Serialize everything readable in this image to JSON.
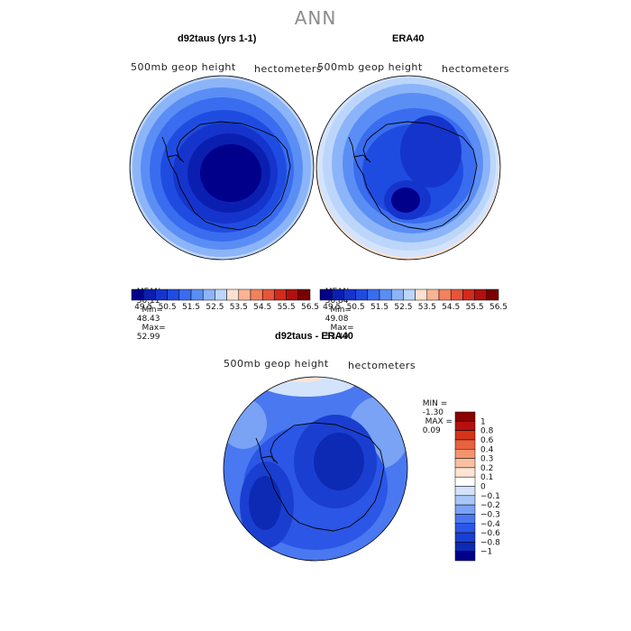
{
  "title": "ANN",
  "colors": {
    "seq": [
      "#00008b",
      "#0a1fb0",
      "#1534cc",
      "#1f4ce0",
      "#3a6cef",
      "#5a8ef5",
      "#8cb4f8",
      "#bcd6fb",
      "#fde0cf",
      "#f8b494",
      "#f2825e",
      "#e6553a",
      "#d22a1c",
      "#b01010",
      "#7a0000"
    ],
    "diff": [
      "#00008b",
      "#0d2ab5",
      "#1a3fd0",
      "#2b56e6",
      "#4a78f0",
      "#7aa2f5",
      "#a9c6f9",
      "#d3e3fc",
      "#ffffff",
      "#fde4d4",
      "#f9bfa3",
      "#f3936e",
      "#e9613f",
      "#d63418",
      "#b41010",
      "#8b0000"
    ]
  },
  "chart_data": [
    {
      "type": "heatmap",
      "projection": "south-polar-stereographic",
      "title": "d92taus (yrs 1-1)",
      "variable": "500mb geop height",
      "units": "hectometers",
      "stats": {
        "MEAN": "50.11",
        "Min": "48.43",
        "Max": "52.99"
      },
      "colorbar_ticks": [
        "49.5",
        "50.5",
        "51.5",
        "52.5",
        "53.5",
        "54.5",
        "55.5",
        "56.5"
      ],
      "colorbar_levels": [
        49,
        49.5,
        50,
        50.5,
        51,
        51.5,
        52,
        52.5,
        53,
        53.5,
        54,
        54.5,
        55,
        55.5,
        56,
        56.5,
        57
      ]
    },
    {
      "type": "heatmap",
      "projection": "south-polar-stereographic",
      "title": "ERA40",
      "variable": "500mb geop height",
      "units": "hectometers",
      "stats": {
        "MEAN": "50.84",
        "Min": "49.08",
        "Max": "53.49"
      },
      "colorbar_ticks": [
        "49.5",
        "50.5",
        "51.5",
        "52.5",
        "53.5",
        "54.5",
        "55.5",
        "56.5"
      ],
      "colorbar_levels": [
        49,
        49.5,
        50,
        50.5,
        51,
        51.5,
        52,
        52.5,
        53,
        53.5,
        54,
        54.5,
        55,
        55.5,
        56,
        56.5,
        57
      ]
    },
    {
      "type": "heatmap",
      "projection": "south-polar-stereographic",
      "title": "d92taus - ERA40",
      "variable": "500mb geop height",
      "units": "hectometers",
      "stats": {
        "MIN": "-1.30",
        "MAX": "0.09"
      },
      "colorbar_ticks": [
        "1",
        "0.8",
        "0.6",
        "0.4",
        "0.3",
        "0.2",
        "0.1",
        "0",
        "−0.1",
        "−0.2",
        "−0.3",
        "−0.4",
        "−0.6",
        "−0.8",
        "−1"
      ],
      "colorbar_levels": [
        -1,
        -0.8,
        -0.6,
        -0.4,
        -0.3,
        -0.2,
        -0.1,
        0,
        0.1,
        0.2,
        0.3,
        0.4,
        0.6,
        0.8,
        1
      ]
    }
  ]
}
